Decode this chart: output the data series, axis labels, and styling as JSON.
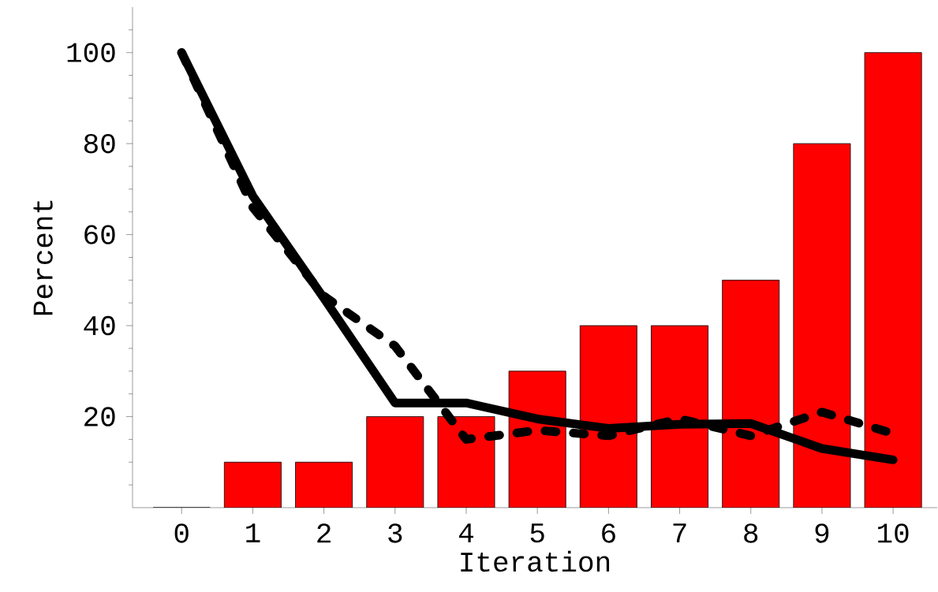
{
  "chart_data": {
    "type": "bar",
    "xlabel": "Iteration",
    "ylabel": "Percent",
    "categories": [
      "0",
      "1",
      "2",
      "3",
      "4",
      "5",
      "6",
      "7",
      "8",
      "9",
      "10"
    ],
    "ylim": [
      0,
      110
    ],
    "yticks": [
      {
        "value": 5,
        "label": null
      },
      {
        "value": 10,
        "label": null
      },
      {
        "value": 15,
        "label": null
      },
      20,
      {
        "value": 25,
        "label": null
      },
      {
        "value": 30,
        "label": null
      },
      {
        "value": 35,
        "label": null
      },
      40,
      {
        "value": 45,
        "label": null
      },
      {
        "value": 50,
        "label": null
      },
      {
        "value": 55,
        "label": null
      },
      60,
      {
        "value": 65,
        "label": null
      },
      {
        "value": 70,
        "label": null
      },
      {
        "value": 75,
        "label": null
      },
      80,
      {
        "value": 85,
        "label": null
      },
      {
        "value": 90,
        "label": null
      },
      {
        "value": 95,
        "label": null
      },
      100,
      {
        "value": 105,
        "label": null
      }
    ],
    "series": [
      {
        "color": "#ff0000",
        "values": [
          0,
          10,
          10,
          20,
          20,
          30,
          40,
          40,
          50,
          80,
          100
        ]
      },
      {
        "type": "line",
        "color": "#000000",
        "line_style": "solid",
        "values": [
          100,
          68.5,
          46,
          23,
          23,
          19.5,
          17.4,
          18.3,
          18.5,
          13,
          10.5
        ]
      },
      {
        "type": "line",
        "color": "#000000",
        "line_style": "dashed",
        "values": [
          100,
          66,
          46.5,
          35.5,
          15,
          17,
          15.8,
          19.5,
          15.8,
          21,
          16.3
        ]
      }
    ]
  }
}
